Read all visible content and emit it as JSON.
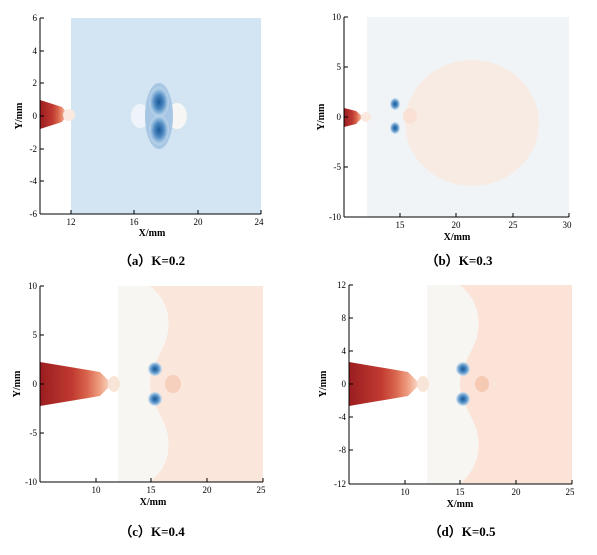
{
  "figure": {
    "panels": [
      {
        "id": "a",
        "caption": "（a）K=0.2",
        "xlabel": "X/mm",
        "ylabel": "Y/mm",
        "xlim": [
          10,
          24
        ],
        "ylim": [
          -6,
          6
        ],
        "xticks": [
          "12",
          "16",
          "20",
          "24"
        ],
        "yticks": [
          "6",
          "4",
          "2",
          "0",
          "-2",
          "-4",
          "-6"
        ],
        "field_start_x": 12,
        "background_color": "#d3e4f2"
      },
      {
        "id": "b",
        "caption": "（b）K=0.3",
        "xlabel": "X/mm",
        "ylabel": "Y/mm",
        "xlim": [
          10,
          30
        ],
        "ylim": [
          -10,
          10
        ],
        "xticks": [
          "15",
          "20",
          "25",
          "30"
        ],
        "yticks": [
          "10",
          "5",
          "0",
          "-5",
          "-10"
        ],
        "field_start_x": 12,
        "background_color": "#f1f4f6"
      },
      {
        "id": "c",
        "caption": "（c）K=0.4",
        "xlabel": "X/mm",
        "ylabel": "Y/mm",
        "xlim": [
          5,
          25
        ],
        "ylim": [
          -10,
          10
        ],
        "xticks": [
          "10",
          "15",
          "20",
          "25"
        ],
        "yticks": [
          "10",
          "5",
          "0",
          "-5",
          "-10"
        ],
        "field_start_x": 12,
        "background_color": "#fbe6dc"
      },
      {
        "id": "d",
        "caption": "（d）K=0.5",
        "xlabel": "X/mm",
        "ylabel": "Y/mm",
        "xlim": [
          5,
          25
        ],
        "ylim": [
          -12,
          12
        ],
        "xticks": [
          "10",
          "15",
          "20",
          "25"
        ],
        "yticks": [
          "12",
          "8",
          "4",
          "0",
          "-4",
          "-8",
          "-12"
        ],
        "field_start_x": 12,
        "background_color": "#fbe3d7"
      }
    ]
  }
}
